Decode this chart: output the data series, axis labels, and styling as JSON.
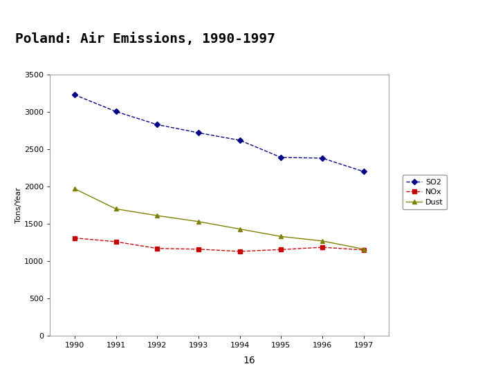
{
  "title": "Poland: Air Emissions, 1990-1997",
  "title_fontsize": 14,
  "title_fontweight": "bold",
  "title_fontfamily": "monospace",
  "red_bar_color": "#dd0000",
  "ylabel": "Tons/Year",
  "years": [
    1990,
    1991,
    1992,
    1993,
    1994,
    1995,
    1996,
    1997
  ],
  "SO2": [
    3230,
    3005,
    2830,
    2720,
    2620,
    2390,
    2380,
    2200
  ],
  "NOx": [
    1310,
    1260,
    1170,
    1160,
    1130,
    1155,
    1185,
    1150
  ],
  "Dust": [
    1970,
    1700,
    1610,
    1530,
    1430,
    1330,
    1270,
    1160
  ],
  "SO2_color": "#00008B",
  "NOx_color": "#cc0000",
  "Dust_color": "#808000",
  "ylim": [
    0,
    3500
  ],
  "yticks": [
    0,
    500,
    1000,
    1500,
    2000,
    2500,
    3000,
    3500
  ],
  "page_number": "16",
  "bg_color": "#ffffff",
  "plot_bg_color": "#ffffff"
}
